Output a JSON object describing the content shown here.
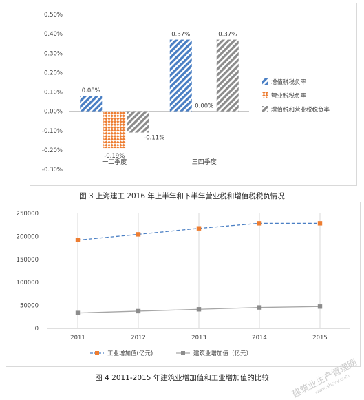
{
  "chart_data": [
    {
      "type": "bar",
      "title": "",
      "categories": [
        "一二季度",
        "三四季度"
      ],
      "series": [
        {
          "name": "增值税税负率",
          "values": [
            0.08,
            0.37
          ],
          "color": "#4a7fc4",
          "pattern": "diagonal-hatch"
        },
        {
          "name": "营业税税负率",
          "values": [
            -0.19,
            0.0
          ],
          "color": "#ed7d31",
          "pattern": "dotted-cross"
        },
        {
          "name": "增值税和营业税税负率",
          "values": [
            -0.11,
            0.37
          ],
          "color": "#8c8c8c",
          "pattern": "diagonal-hatch"
        }
      ],
      "data_labels": [
        [
          "0.08%",
          "0.37%"
        ],
        [
          "-0.19%",
          "0.00%"
        ],
        [
          "-0.11%",
          "0.37%"
        ]
      ],
      "yticks": [
        "0.50%",
        "0.40%",
        "0.30%",
        "0.20%",
        "0.10%",
        "0.00%",
        "-0.10%",
        "-0.20%",
        "-0.30%"
      ],
      "ylim": [
        -0.3,
        0.5
      ],
      "unit": "%",
      "legend": "right",
      "grid": false
    },
    {
      "type": "line",
      "title": "",
      "x": [
        "2011",
        "2012",
        "2013",
        "2014",
        "2015"
      ],
      "series": [
        {
          "name": "工业增加值(亿元)",
          "values": [
            192000,
            204500,
            217500,
            228500,
            228500
          ],
          "color": "#4a7fc4",
          "marker_color": "#ed7d31",
          "style": "dashed"
        },
        {
          "name": "建筑业增加值（亿元）",
          "values": [
            33500,
            37500,
            41500,
            45500,
            47500
          ],
          "color": "#a6a6a6",
          "marker_color": "#8c8c8c",
          "style": "solid"
        }
      ],
      "yticks": [
        "250000",
        "200000",
        "150000",
        "100000",
        "50000",
        "0"
      ],
      "ylim": [
        0,
        250000
      ],
      "legend": "bottom",
      "grid": "vertical"
    }
  ],
  "captions": {
    "fig3": "图 3  上海建工 2016 年上半年和下半年营业税和增值税税负情况",
    "fig4": "图 4   2011-2015 年建筑业增加值和工业增加值的比较"
  },
  "watermark": {
    "main": "建筑业生产管理网",
    "sub": "www.shcvv.com"
  }
}
